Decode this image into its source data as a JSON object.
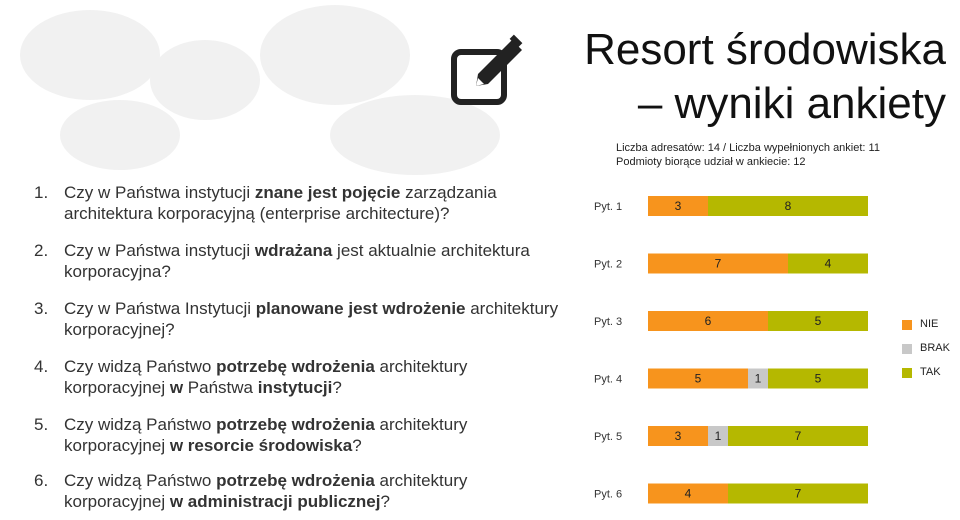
{
  "header": {
    "title_line1": "Resort środowiska",
    "title_line2": "– wyniki ankiety",
    "meta_line1": "Liczba adresatów: 14 / Liczba wypełnionych ankiet: 11",
    "meta_line2": "Podmioty biorące udział w ankiecie: 12",
    "icon": "edit-pencil-icon"
  },
  "questions": [
    {
      "num": "1.",
      "parts": [
        [
          "Czy w Państwa instytucji ",
          false
        ],
        [
          "znane jest pojęcie",
          true
        ],
        [
          " zarządzania architektura korporacyjną (enterprise architecture)?",
          false
        ]
      ]
    },
    {
      "num": "2.",
      "parts": [
        [
          "Czy w Państwa instytucji ",
          false
        ],
        [
          "wdrażana",
          true
        ],
        [
          " jest aktualnie architektura korporacyjna?",
          false
        ]
      ]
    },
    {
      "num": "3.",
      "parts": [
        [
          "Czy w Państwa Instytucji ",
          false
        ],
        [
          "planowane jest wdrożenie",
          true
        ],
        [
          " architektury korporacyjnej?",
          false
        ]
      ]
    },
    {
      "num": "4.",
      "parts": [
        [
          "Czy widzą Państwo ",
          false
        ],
        [
          "potrzebę wdrożenia",
          true
        ],
        [
          " architektury korporacyjnej ",
          false
        ],
        [
          "w",
          true
        ],
        [
          " Państwa ",
          false
        ],
        [
          "instytucji",
          true
        ],
        [
          "?",
          false
        ]
      ]
    },
    {
      "num": "5.",
      "parts": [
        [
          "Czy widzą Państwo ",
          false
        ],
        [
          "potrzebę wdrożenia",
          true
        ],
        [
          " architektury korporacyjnej ",
          false
        ],
        [
          "w resorcie środowiska",
          true
        ],
        [
          "?",
          false
        ]
      ]
    },
    {
      "num": "6.",
      "parts": [
        [
          "Czy widzą Państwo ",
          false
        ],
        [
          "potrzebę wdrożenia",
          true
        ],
        [
          " architektury korporacyjnej ",
          false
        ],
        [
          "w administracji publicznej",
          true
        ],
        [
          "?",
          false
        ]
      ]
    }
  ],
  "chart_data": {
    "type": "bar",
    "stacked": true,
    "orientation": "horizontal",
    "categories": [
      "Pyt. 1",
      "Pyt. 2",
      "Pyt. 3",
      "Pyt. 4",
      "Pyt. 5",
      "Pyt. 6"
    ],
    "series": [
      {
        "name": "NIE",
        "color": "#f7941d",
        "values": [
          3,
          7,
          6,
          5,
          3,
          4
        ]
      },
      {
        "name": "BRAK",
        "color": "#c8c8c8",
        "values": [
          0,
          0,
          0,
          1,
          1,
          0
        ]
      },
      {
        "name": "TAK",
        "color": "#b5b800",
        "values": [
          8,
          4,
          5,
          5,
          7,
          7
        ]
      }
    ],
    "data_labels": [
      [
        "3",
        "",
        "8"
      ],
      [
        "7",
        "",
        "4"
      ],
      [
        "6",
        "",
        "5"
      ],
      [
        "5",
        "1",
        "5"
      ],
      [
        "3",
        "1",
        "7"
      ],
      [
        "4",
        "",
        "7"
      ]
    ],
    "xlim": [
      0,
      11
    ],
    "legend_position": "right",
    "grid": false
  }
}
